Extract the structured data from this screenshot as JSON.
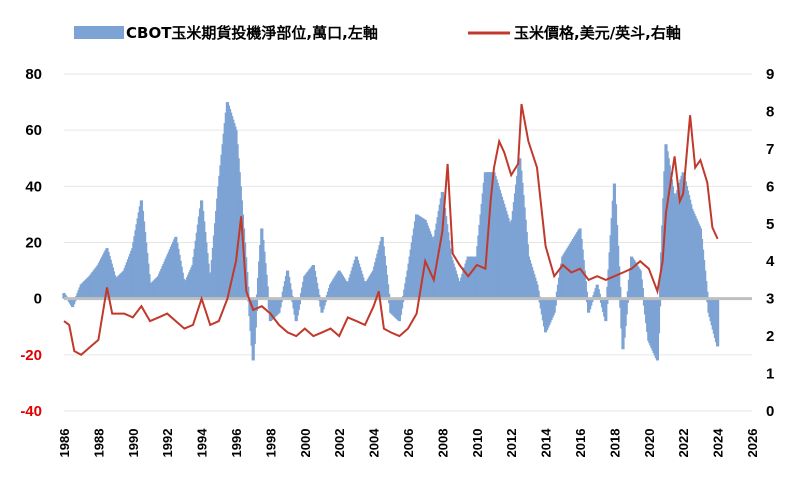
{
  "chart_data": {
    "type": "bar+line",
    "title": "",
    "legend_position": "top",
    "colors": {
      "bars": "#7da3d4",
      "line": "#c0392b",
      "neg_tick": "#e00000",
      "baseline": "#bfbfbf"
    },
    "x_range": [
      1986,
      2026
    ],
    "x_ticks": [
      "1986",
      "1988",
      "1990",
      "1992",
      "1994",
      "1996",
      "1998",
      "2000",
      "2002",
      "2004",
      "2006",
      "2008",
      "2010",
      "2012",
      "2014",
      "2016",
      "2018",
      "2020",
      "2022",
      "2024",
      "2026"
    ],
    "y_left": {
      "range": [
        -40,
        80
      ],
      "ticks": [
        "80",
        "60",
        "40",
        "20",
        "0",
        "-20",
        "-40"
      ]
    },
    "y_right": {
      "range": [
        0,
        9
      ],
      "ticks": [
        "9",
        "8",
        "7",
        "6",
        "5",
        "4",
        "3",
        "2",
        "1",
        "0"
      ]
    },
    "series": [
      {
        "name": "CBOT玉米期貨投機淨部位,萬口,左軸",
        "kind": "bar",
        "axis": "left",
        "points": [
          [
            1986.0,
            2
          ],
          [
            1986.5,
            -3
          ],
          [
            1987.0,
            5
          ],
          [
            1987.5,
            8
          ],
          [
            1988.0,
            12
          ],
          [
            1988.5,
            18
          ],
          [
            1989.0,
            7
          ],
          [
            1989.5,
            10
          ],
          [
            1990.0,
            18
          ],
          [
            1990.5,
            35
          ],
          [
            1991.0,
            5
          ],
          [
            1991.5,
            8
          ],
          [
            1992.0,
            15
          ],
          [
            1992.5,
            22
          ],
          [
            1993.0,
            5
          ],
          [
            1993.5,
            12
          ],
          [
            1994.0,
            35
          ],
          [
            1994.5,
            5
          ],
          [
            1995.0,
            40
          ],
          [
            1995.5,
            70
          ],
          [
            1996.0,
            60
          ],
          [
            1996.5,
            20
          ],
          [
            1997.0,
            -22
          ],
          [
            1997.5,
            25
          ],
          [
            1998.0,
            -8
          ],
          [
            1998.5,
            -5
          ],
          [
            1999.0,
            10
          ],
          [
            1999.5,
            -8
          ],
          [
            2000.0,
            8
          ],
          [
            2000.5,
            12
          ],
          [
            2001.0,
            -5
          ],
          [
            2001.5,
            5
          ],
          [
            2002.0,
            10
          ],
          [
            2002.5,
            5
          ],
          [
            2003.0,
            15
          ],
          [
            2003.5,
            5
          ],
          [
            2004.0,
            10
          ],
          [
            2004.5,
            22
          ],
          [
            2005.0,
            -5
          ],
          [
            2005.5,
            -8
          ],
          [
            2006.0,
            10
          ],
          [
            2006.5,
            30
          ],
          [
            2007.0,
            28
          ],
          [
            2007.5,
            20
          ],
          [
            2008.0,
            38
          ],
          [
            2008.5,
            15
          ],
          [
            2009.0,
            5
          ],
          [
            2009.5,
            15
          ],
          [
            2010.0,
            15
          ],
          [
            2010.5,
            45
          ],
          [
            2011.0,
            45
          ],
          [
            2011.5,
            35
          ],
          [
            2012.0,
            25
          ],
          [
            2012.5,
            50
          ],
          [
            2013.0,
            15
          ],
          [
            2013.5,
            5
          ],
          [
            2014.0,
            -12
          ],
          [
            2014.5,
            -5
          ],
          [
            2015.0,
            15
          ],
          [
            2015.5,
            20
          ],
          [
            2016.0,
            25
          ],
          [
            2016.5,
            -5
          ],
          [
            2017.0,
            5
          ],
          [
            2017.5,
            -8
          ],
          [
            2018.0,
            41
          ],
          [
            2018.5,
            -18
          ],
          [
            2019.0,
            15
          ],
          [
            2019.5,
            10
          ],
          [
            2020.0,
            -15
          ],
          [
            2020.5,
            -22
          ],
          [
            2021.0,
            55
          ],
          [
            2021.5,
            35
          ],
          [
            2022.0,
            45
          ],
          [
            2022.5,
            32
          ],
          [
            2023.0,
            25
          ],
          [
            2023.5,
            -5
          ],
          [
            2024.0,
            -17
          ]
        ]
      },
      {
        "name": "玉米價格,美元/英斗,右軸",
        "kind": "line",
        "axis": "right",
        "points": [
          [
            1986.0,
            2.4
          ],
          [
            1986.3,
            2.3
          ],
          [
            1986.6,
            1.6
          ],
          [
            1987.0,
            1.5
          ],
          [
            1987.5,
            1.7
          ],
          [
            1988.0,
            1.9
          ],
          [
            1988.5,
            3.3
          ],
          [
            1988.8,
            2.6
          ],
          [
            1989.5,
            2.6
          ],
          [
            1990.0,
            2.5
          ],
          [
            1990.5,
            2.8
          ],
          [
            1991.0,
            2.4
          ],
          [
            1991.5,
            2.5
          ],
          [
            1992.0,
            2.6
          ],
          [
            1992.5,
            2.4
          ],
          [
            1993.0,
            2.2
          ],
          [
            1993.5,
            2.3
          ],
          [
            1994.0,
            3.0
          ],
          [
            1994.5,
            2.3
          ],
          [
            1995.0,
            2.4
          ],
          [
            1995.5,
            3.0
          ],
          [
            1996.0,
            4.0
          ],
          [
            1996.3,
            5.2
          ],
          [
            1996.6,
            3.2
          ],
          [
            1997.0,
            2.7
          ],
          [
            1997.5,
            2.8
          ],
          [
            1998.0,
            2.6
          ],
          [
            1998.5,
            2.3
          ],
          [
            1999.0,
            2.1
          ],
          [
            1999.5,
            2.0
          ],
          [
            2000.0,
            2.2
          ],
          [
            2000.5,
            2.0
          ],
          [
            2001.0,
            2.1
          ],
          [
            2001.5,
            2.2
          ],
          [
            2002.0,
            2.0
          ],
          [
            2002.5,
            2.5
          ],
          [
            2003.0,
            2.4
          ],
          [
            2003.5,
            2.3
          ],
          [
            2004.0,
            2.8
          ],
          [
            2004.3,
            3.2
          ],
          [
            2004.6,
            2.2
          ],
          [
            2005.0,
            2.1
          ],
          [
            2005.5,
            2.0
          ],
          [
            2006.0,
            2.2
          ],
          [
            2006.5,
            2.6
          ],
          [
            2007.0,
            4.0
          ],
          [
            2007.5,
            3.5
          ],
          [
            2008.0,
            4.8
          ],
          [
            2008.3,
            6.6
          ],
          [
            2008.6,
            4.2
          ],
          [
            2009.0,
            3.9
          ],
          [
            2009.5,
            3.6
          ],
          [
            2010.0,
            3.9
          ],
          [
            2010.5,
            3.8
          ],
          [
            2010.8,
            5.6
          ],
          [
            2011.0,
            6.5
          ],
          [
            2011.3,
            7.2
          ],
          [
            2011.6,
            6.9
          ],
          [
            2012.0,
            6.3
          ],
          [
            2012.4,
            6.6
          ],
          [
            2012.6,
            8.2
          ],
          [
            2013.0,
            7.2
          ],
          [
            2013.5,
            6.5
          ],
          [
            2014.0,
            4.4
          ],
          [
            2014.5,
            3.6
          ],
          [
            2015.0,
            3.9
          ],
          [
            2015.5,
            3.7
          ],
          [
            2016.0,
            3.8
          ],
          [
            2016.5,
            3.5
          ],
          [
            2017.0,
            3.6
          ],
          [
            2017.5,
            3.5
          ],
          [
            2018.0,
            3.6
          ],
          [
            2018.5,
            3.7
          ],
          [
            2019.0,
            3.8
          ],
          [
            2019.5,
            4.0
          ],
          [
            2020.0,
            3.8
          ],
          [
            2020.5,
            3.2
          ],
          [
            2020.8,
            4.0
          ],
          [
            2021.0,
            5.3
          ],
          [
            2021.5,
            6.8
          ],
          [
            2021.8,
            5.6
          ],
          [
            2022.0,
            5.8
          ],
          [
            2022.4,
            7.9
          ],
          [
            2022.7,
            6.5
          ],
          [
            2023.0,
            6.7
          ],
          [
            2023.4,
            6.1
          ],
          [
            2023.7,
            4.9
          ],
          [
            2024.0,
            4.6
          ]
        ]
      }
    ]
  }
}
